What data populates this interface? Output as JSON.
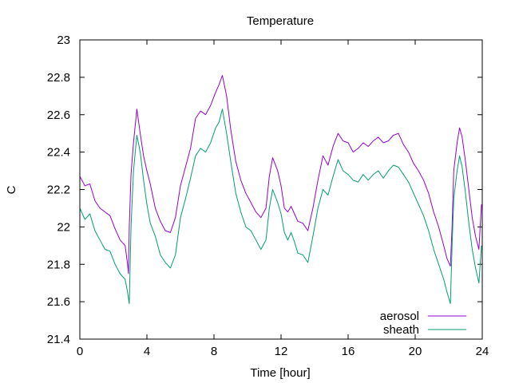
{
  "chart_data": {
    "type": "line",
    "title": "Temperature",
    "xlabel": "Time [hour]",
    "ylabel": "C",
    "xlim": [
      0,
      24
    ],
    "ylim": [
      21.4,
      23
    ],
    "xticks": [
      0,
      4,
      8,
      12,
      16,
      20,
      24
    ],
    "xtick_labels": [
      "0",
      "4",
      "8",
      "12",
      "16",
      "20",
      "24"
    ],
    "yticks": [
      21.4,
      21.6,
      21.8,
      22,
      22.2,
      22.4,
      22.6,
      22.8,
      23
    ],
    "ytick_labels": [
      "21.4",
      "21.6",
      "21.8",
      "22",
      "22.2",
      "22.4",
      "22.6",
      "22.8",
      "23"
    ],
    "grid": false,
    "legend_position": "bottom-right",
    "series": [
      {
        "name": "aerosol",
        "color": "#9400d3",
        "points": [
          [
            0,
            22.27
          ],
          [
            0.3,
            22.22
          ],
          [
            0.6,
            22.23
          ],
          [
            0.9,
            22.14
          ],
          [
            1.2,
            22.1
          ],
          [
            1.5,
            22.08
          ],
          [
            1.8,
            22.06
          ],
          [
            2.1,
            21.99
          ],
          [
            2.4,
            21.93
          ],
          [
            2.7,
            21.9
          ],
          [
            2.85,
            21.8
          ],
          [
            2.9,
            21.75
          ],
          [
            2.95,
            22.0
          ],
          [
            3.05,
            22.28
          ],
          [
            3.2,
            22.45
          ],
          [
            3.4,
            22.63
          ],
          [
            3.6,
            22.5
          ],
          [
            3.8,
            22.38
          ],
          [
            4.0,
            22.3
          ],
          [
            4.2,
            22.23
          ],
          [
            4.5,
            22.1
          ],
          [
            4.8,
            22.03
          ],
          [
            5.1,
            21.98
          ],
          [
            5.4,
            21.97
          ],
          [
            5.7,
            22.05
          ],
          [
            6.0,
            22.22
          ],
          [
            6.3,
            22.32
          ],
          [
            6.6,
            22.42
          ],
          [
            6.9,
            22.58
          ],
          [
            7.2,
            22.62
          ],
          [
            7.5,
            22.6
          ],
          [
            7.8,
            22.65
          ],
          [
            8.1,
            22.72
          ],
          [
            8.3,
            22.76
          ],
          [
            8.5,
            22.81
          ],
          [
            8.75,
            22.7
          ],
          [
            9.0,
            22.52
          ],
          [
            9.3,
            22.35
          ],
          [
            9.6,
            22.25
          ],
          [
            9.9,
            22.18
          ],
          [
            10.2,
            22.13
          ],
          [
            10.5,
            22.08
          ],
          [
            10.8,
            22.05
          ],
          [
            11.1,
            22.1
          ],
          [
            11.3,
            22.27
          ],
          [
            11.5,
            22.37
          ],
          [
            11.8,
            22.3
          ],
          [
            12.0,
            22.22
          ],
          [
            12.2,
            22.1
          ],
          [
            12.4,
            22.08
          ],
          [
            12.6,
            22.11
          ],
          [
            12.8,
            22.07
          ],
          [
            13.0,
            22.03
          ],
          [
            13.3,
            22.02
          ],
          [
            13.6,
            21.98
          ],
          [
            13.9,
            22.1
          ],
          [
            14.2,
            22.25
          ],
          [
            14.5,
            22.38
          ],
          [
            14.8,
            22.33
          ],
          [
            15.1,
            22.43
          ],
          [
            15.4,
            22.5
          ],
          [
            15.7,
            22.46
          ],
          [
            16.0,
            22.45
          ],
          [
            16.3,
            22.4
          ],
          [
            16.6,
            22.42
          ],
          [
            16.9,
            22.45
          ],
          [
            17.2,
            22.43
          ],
          [
            17.5,
            22.46
          ],
          [
            17.8,
            22.48
          ],
          [
            18.1,
            22.45
          ],
          [
            18.4,
            22.46
          ],
          [
            18.7,
            22.49
          ],
          [
            19.0,
            22.5
          ],
          [
            19.3,
            22.44
          ],
          [
            19.6,
            22.4
          ],
          [
            19.9,
            22.34
          ],
          [
            20.2,
            22.3
          ],
          [
            20.5,
            22.25
          ],
          [
            20.8,
            22.18
          ],
          [
            21.1,
            22.08
          ],
          [
            21.4,
            22.0
          ],
          [
            21.7,
            21.9
          ],
          [
            21.9,
            21.83
          ],
          [
            22.1,
            21.79
          ],
          [
            22.2,
            22.0
          ],
          [
            22.3,
            22.3
          ],
          [
            22.5,
            22.45
          ],
          [
            22.65,
            22.53
          ],
          [
            22.8,
            22.48
          ],
          [
            23.0,
            22.35
          ],
          [
            23.2,
            22.2
          ],
          [
            23.4,
            22.05
          ],
          [
            23.6,
            21.95
          ],
          [
            23.8,
            21.88
          ],
          [
            23.95,
            22.12
          ]
        ]
      },
      {
        "name": "sheath",
        "color": "#009e73",
        "points": [
          [
            0,
            22.1
          ],
          [
            0.3,
            22.04
          ],
          [
            0.6,
            22.07
          ],
          [
            0.9,
            21.98
          ],
          [
            1.2,
            21.93
          ],
          [
            1.5,
            21.88
          ],
          [
            1.8,
            21.87
          ],
          [
            2.1,
            21.8
          ],
          [
            2.4,
            21.75
          ],
          [
            2.7,
            21.72
          ],
          [
            2.85,
            21.65
          ],
          [
            2.95,
            21.59
          ],
          [
            3.05,
            22.0
          ],
          [
            3.2,
            22.3
          ],
          [
            3.4,
            22.49
          ],
          [
            3.6,
            22.4
          ],
          [
            3.8,
            22.25
          ],
          [
            4.0,
            22.12
          ],
          [
            4.2,
            22.02
          ],
          [
            4.5,
            21.95
          ],
          [
            4.8,
            21.85
          ],
          [
            5.1,
            21.81
          ],
          [
            5.4,
            21.78
          ],
          [
            5.7,
            21.85
          ],
          [
            6.0,
            22.05
          ],
          [
            6.3,
            22.15
          ],
          [
            6.6,
            22.26
          ],
          [
            6.9,
            22.38
          ],
          [
            7.2,
            22.42
          ],
          [
            7.5,
            22.4
          ],
          [
            7.8,
            22.45
          ],
          [
            8.1,
            22.53
          ],
          [
            8.3,
            22.56
          ],
          [
            8.5,
            22.63
          ],
          [
            8.75,
            22.5
          ],
          [
            9.0,
            22.35
          ],
          [
            9.3,
            22.18
          ],
          [
            9.6,
            22.08
          ],
          [
            9.9,
            22.0
          ],
          [
            10.2,
            21.98
          ],
          [
            10.5,
            21.93
          ],
          [
            10.8,
            21.88
          ],
          [
            11.1,
            21.93
          ],
          [
            11.3,
            22.1
          ],
          [
            11.5,
            22.2
          ],
          [
            11.8,
            22.13
          ],
          [
            12.0,
            22.07
          ],
          [
            12.2,
            21.97
          ],
          [
            12.4,
            21.93
          ],
          [
            12.6,
            21.97
          ],
          [
            12.8,
            21.92
          ],
          [
            13.0,
            21.86
          ],
          [
            13.3,
            21.85
          ],
          [
            13.6,
            21.81
          ],
          [
            13.9,
            21.95
          ],
          [
            14.2,
            22.1
          ],
          [
            14.5,
            22.2
          ],
          [
            14.8,
            22.17
          ],
          [
            15.1,
            22.27
          ],
          [
            15.4,
            22.36
          ],
          [
            15.7,
            22.3
          ],
          [
            16.0,
            22.28
          ],
          [
            16.3,
            22.25
          ],
          [
            16.6,
            22.24
          ],
          [
            16.9,
            22.28
          ],
          [
            17.2,
            22.25
          ],
          [
            17.5,
            22.28
          ],
          [
            17.8,
            22.3
          ],
          [
            18.1,
            22.26
          ],
          [
            18.4,
            22.3
          ],
          [
            18.7,
            22.33
          ],
          [
            19.0,
            22.32
          ],
          [
            19.3,
            22.28
          ],
          [
            19.6,
            22.24
          ],
          [
            19.9,
            22.18
          ],
          [
            20.2,
            22.12
          ],
          [
            20.5,
            22.06
          ],
          [
            20.8,
            21.98
          ],
          [
            21.1,
            21.88
          ],
          [
            21.4,
            21.8
          ],
          [
            21.7,
            21.72
          ],
          [
            21.9,
            21.65
          ],
          [
            22.1,
            21.59
          ],
          [
            22.2,
            21.9
          ],
          [
            22.3,
            22.15
          ],
          [
            22.5,
            22.3
          ],
          [
            22.65,
            22.38
          ],
          [
            22.8,
            22.32
          ],
          [
            23.0,
            22.18
          ],
          [
            23.2,
            22.02
          ],
          [
            23.4,
            21.88
          ],
          [
            23.6,
            21.78
          ],
          [
            23.8,
            21.7
          ],
          [
            23.95,
            21.9
          ]
        ]
      }
    ]
  }
}
